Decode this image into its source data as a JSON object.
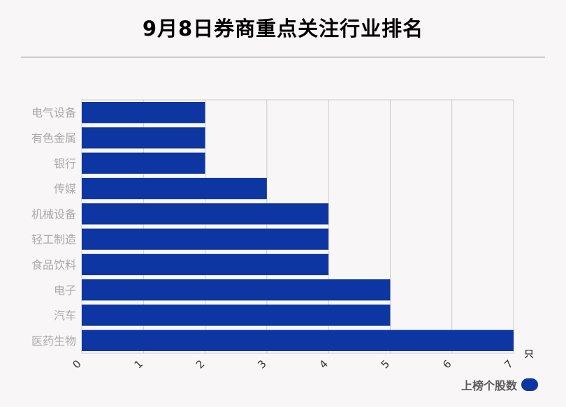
{
  "title": "9月8日券商重点关注行业排名",
  "legend": {
    "label": "上榜个股数"
  },
  "colors": {
    "bar": "#0d36a2",
    "grid": "#cccccc",
    "axis_text": "#aaaaaa"
  },
  "chart_data": {
    "type": "bar",
    "orientation": "horizontal",
    "title": "9月8日券商重点关注行业排名",
    "categories": [
      "电气设备",
      "有色金属",
      "银行",
      "传媒",
      "机械设备",
      "轻工制造",
      "食品饮料",
      "电子",
      "汽车",
      "医药生物"
    ],
    "series": [
      {
        "name": "上榜个股数",
        "values": [
          2,
          2,
          2,
          3,
          4,
          4,
          4,
          5,
          5,
          7
        ]
      }
    ],
    "xlim": [
      0,
      7
    ],
    "x_ticks": [
      "0",
      "1",
      "2",
      "3",
      "4",
      "5",
      "6",
      "7"
    ],
    "x_unit": "只",
    "grid": true,
    "legend_position": "bottom-right"
  }
}
